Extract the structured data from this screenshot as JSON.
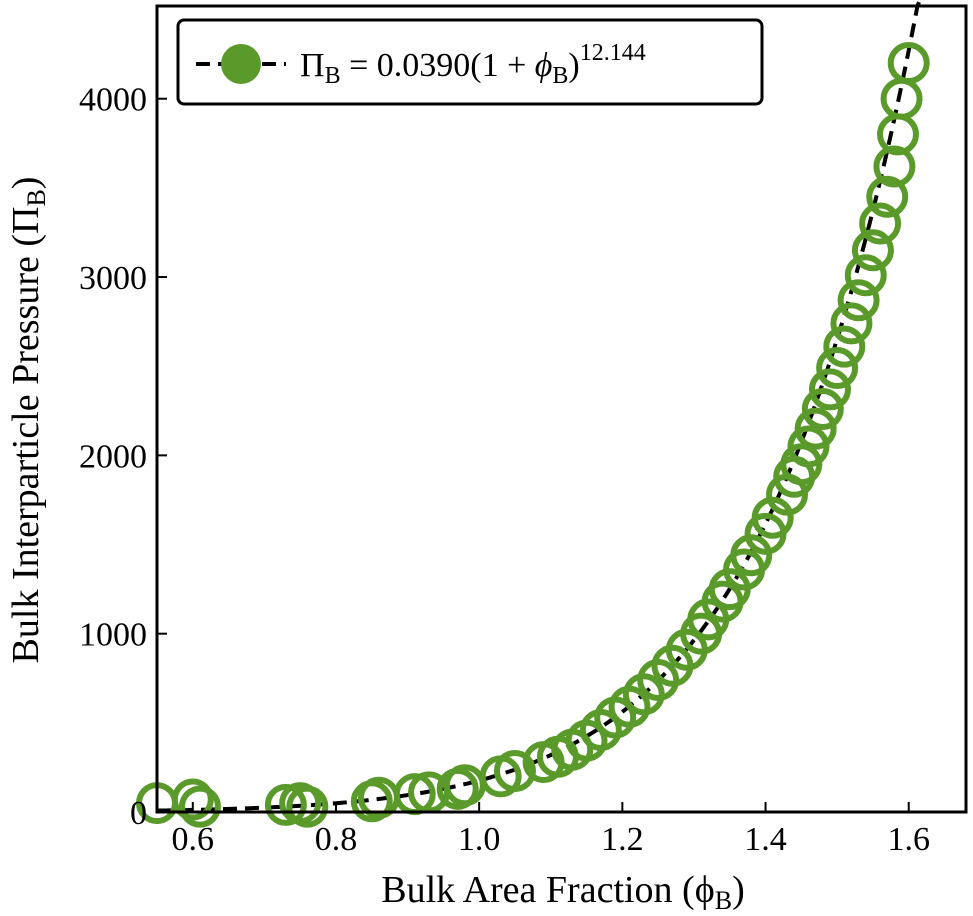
{
  "chart_data": {
    "type": "scatter",
    "xlabel": "Bulk Area Fraction (ϕ",
    "xlabel_sub": "B",
    "xlabel_close": ")",
    "ylabel": "Bulk Interparticle Pressure (Π",
    "ylabel_sub": "B",
    "ylabel_close": ")",
    "xlim": [
      0.55,
      1.68
    ],
    "ylim": [
      0,
      4520
    ],
    "x_ticks": [
      0.6,
      0.8,
      1.0,
      1.2,
      1.4,
      1.6
    ],
    "x_tick_labels": [
      "0.6",
      "0.8",
      "1.0",
      "1.2",
      "1.4",
      "1.6"
    ],
    "y_ticks": [
      0,
      1000,
      2000,
      3000,
      4000
    ],
    "y_tick_labels": [
      "0",
      "1000",
      "2000",
      "3000",
      "4000"
    ],
    "legend": {
      "placement": "top-left",
      "pi": "Π",
      "sub1": "B",
      "eq": " = 0.0390(1 + ",
      "phi": "ϕ",
      "sub2": "B",
      "close": ")",
      "exponent": "12.144"
    },
    "fit": {
      "coefficient": 0.039,
      "exponent": 12.144,
      "style": "dashed",
      "color": "#000000"
    },
    "marker_color": "#5a9a2a",
    "series": [
      {
        "x": [
          0.55,
          0.6,
          0.61,
          0.73,
          0.75,
          0.76,
          0.85,
          0.86,
          0.91,
          0.93,
          0.97,
          0.98,
          1.03,
          1.05,
          1.09,
          1.11,
          1.13,
          1.15,
          1.17,
          1.19,
          1.21,
          1.23,
          1.25,
          1.27,
          1.29,
          1.31,
          1.32,
          1.34,
          1.35,
          1.37,
          1.38,
          1.4,
          1.41,
          1.43,
          1.44,
          1.45,
          1.46,
          1.47,
          1.48,
          1.49,
          1.5,
          1.51,
          1.52,
          1.53,
          1.54,
          1.55,
          1.56,
          1.57,
          1.58,
          1.585,
          1.59,
          1.6
        ],
        "y": [
          50,
          70,
          30,
          40,
          50,
          30,
          60,
          80,
          100,
          110,
          130,
          150,
          200,
          230,
          280,
          310,
          350,
          400,
          460,
          530,
          590,
          660,
          740,
          820,
          910,
          1000,
          1080,
          1180,
          1250,
          1360,
          1440,
          1560,
          1650,
          1780,
          1880,
          1950,
          2050,
          2150,
          2260,
          2370,
          2490,
          2610,
          2740,
          2870,
          3010,
          3150,
          3300,
          3450,
          3620,
          3800,
          4000,
          4200
        ]
      }
    ]
  }
}
